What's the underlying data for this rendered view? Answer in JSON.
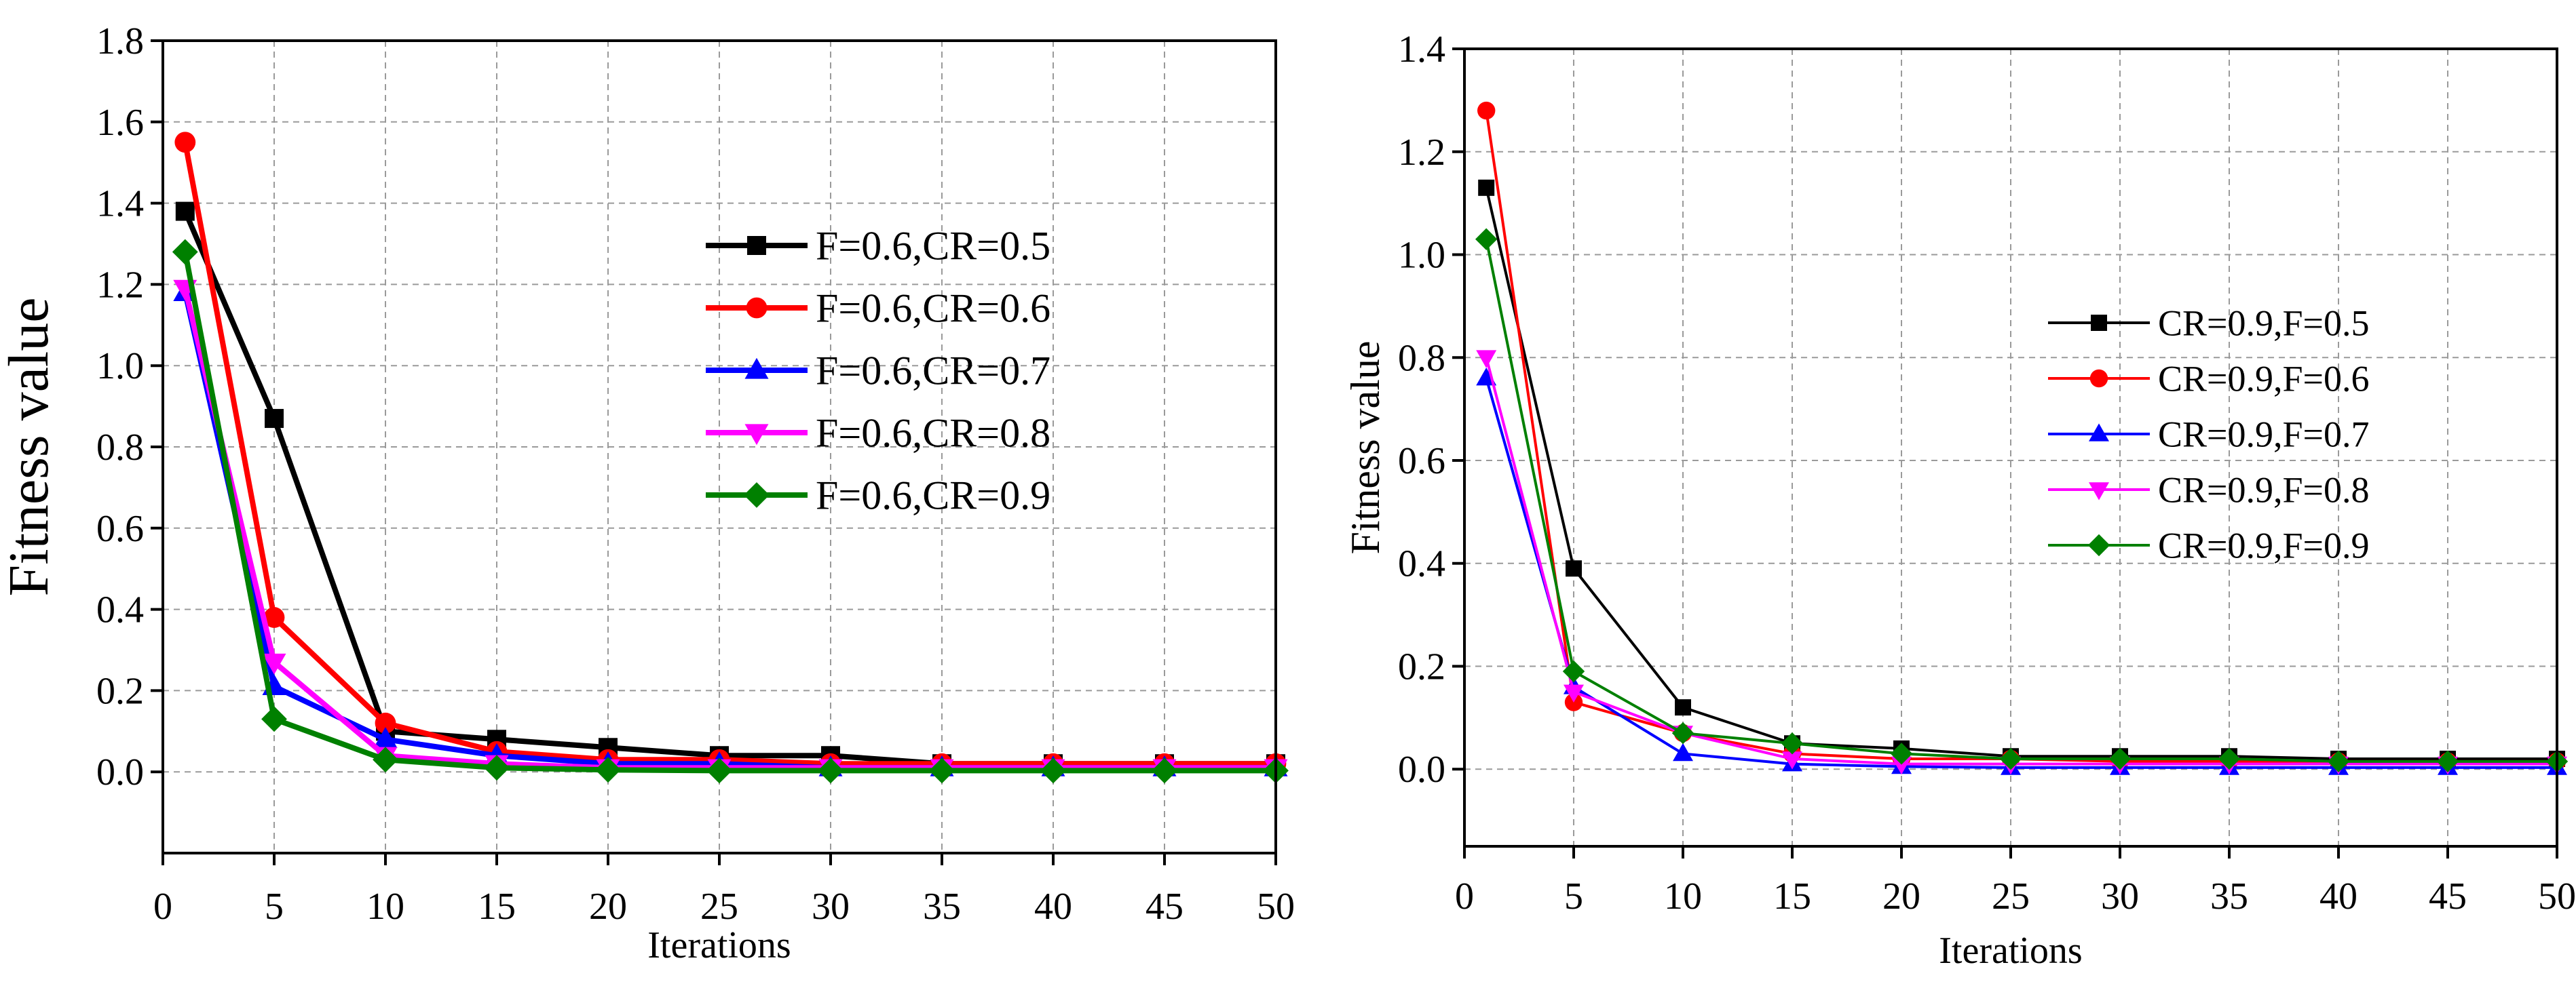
{
  "chart_data": [
    {
      "type": "line",
      "title": "",
      "xlabel": "Iterations",
      "ylabel": "Fitness value",
      "xlim": [
        0,
        50
      ],
      "ylim": [
        -0.2,
        1.8
      ],
      "xticks": [
        0,
        5,
        10,
        15,
        20,
        25,
        30,
        35,
        40,
        45,
        50
      ],
      "yticks": [
        0.0,
        0.2,
        0.4,
        0.6,
        0.8,
        1.0,
        1.2,
        1.4,
        1.6,
        1.8
      ],
      "ytick_labels": [
        "0.0",
        "0.2",
        "0.4",
        "0.6",
        "0.8",
        "1.0",
        "1.2",
        "1.4",
        "1.6",
        "1.8"
      ],
      "xtick_labels": [
        "0",
        "5",
        "10",
        "15",
        "20",
        "25",
        "30",
        "35",
        "40",
        "45",
        "50"
      ],
      "grid": true,
      "legend_position": "center-right",
      "x": [
        1,
        5,
        10,
        15,
        20,
        25,
        30,
        35,
        40,
        45,
        50
      ],
      "series": [
        {
          "name": "F=0.6,CR=0.5",
          "color": "#000000",
          "marker": "square",
          "values": [
            1.38,
            0.87,
            0.1,
            0.08,
            0.06,
            0.04,
            0.04,
            0.02,
            0.02,
            0.02,
            0.02
          ]
        },
        {
          "name": "F=0.6,CR=0.6",
          "color": "#ff0000",
          "marker": "circle",
          "values": [
            1.55,
            0.38,
            0.12,
            0.05,
            0.03,
            0.03,
            0.02,
            0.02,
            0.02,
            0.02,
            0.02
          ]
        },
        {
          "name": "F=0.6,CR=0.7",
          "color": "#0000ff",
          "marker": "triangle-up",
          "values": [
            1.18,
            0.21,
            0.08,
            0.04,
            0.02,
            0.02,
            0.01,
            0.01,
            0.01,
            0.01,
            0.01
          ]
        },
        {
          "name": "F=0.6,CR=0.8",
          "color": "#ff00ff",
          "marker": "triangle-down",
          "values": [
            1.19,
            0.27,
            0.04,
            0.02,
            0.01,
            0.01,
            0.01,
            0.01,
            0.01,
            0.01,
            0.01
          ]
        },
        {
          "name": "F=0.6,CR=0.9",
          "color": "#008000",
          "marker": "diamond",
          "values": [
            1.28,
            0.13,
            0.03,
            0.01,
            0.005,
            0.003,
            0.003,
            0.003,
            0.003,
            0.003,
            0.003
          ]
        }
      ]
    },
    {
      "type": "line",
      "title": "",
      "xlabel": "Iterations",
      "ylabel": "Fitness value",
      "xlim": [
        0,
        50
      ],
      "ylim": [
        -0.15,
        1.4
      ],
      "xticks": [
        0,
        5,
        10,
        15,
        20,
        25,
        30,
        35,
        40,
        45,
        50
      ],
      "yticks": [
        0.0,
        0.2,
        0.4,
        0.6,
        0.8,
        1.0,
        1.2,
        1.4
      ],
      "ytick_labels": [
        "0.0",
        "0.2",
        "0.4",
        "0.6",
        "0.8",
        "1.0",
        "1.2",
        "1.4"
      ],
      "xtick_labels": [
        "0",
        "5",
        "10",
        "15",
        "20",
        "25",
        "30",
        "35",
        "40",
        "45",
        "50"
      ],
      "grid": true,
      "legend_position": "center-right",
      "x": [
        1,
        5,
        10,
        15,
        20,
        25,
        30,
        35,
        40,
        45,
        50
      ],
      "series": [
        {
          "name": "CR=0.9,F=0.5",
          "color": "#000000",
          "marker": "square",
          "values": [
            1.13,
            0.39,
            0.12,
            0.05,
            0.04,
            0.025,
            0.025,
            0.025,
            0.02,
            0.02,
            0.02
          ]
        },
        {
          "name": "CR=0.9,F=0.6",
          "color": "#ff0000",
          "marker": "circle",
          "values": [
            1.28,
            0.13,
            0.07,
            0.03,
            0.02,
            0.02,
            0.015,
            0.015,
            0.015,
            0.015,
            0.015
          ]
        },
        {
          "name": "CR=0.9,F=0.7",
          "color": "#0000ff",
          "marker": "triangle-up",
          "values": [
            0.76,
            0.16,
            0.03,
            0.01,
            0.005,
            0.003,
            0.003,
            0.003,
            0.003,
            0.003,
            0.003
          ]
        },
        {
          "name": "CR=0.9,F=0.8",
          "color": "#ff00ff",
          "marker": "triangle-down",
          "values": [
            0.8,
            0.15,
            0.07,
            0.02,
            0.01,
            0.01,
            0.01,
            0.01,
            0.01,
            0.01,
            0.01
          ]
        },
        {
          "name": "CR=0.9,F=0.9",
          "color": "#008000",
          "marker": "diamond",
          "values": [
            1.03,
            0.19,
            0.07,
            0.05,
            0.03,
            0.02,
            0.02,
            0.02,
            0.015,
            0.015,
            0.015
          ]
        }
      ]
    }
  ]
}
